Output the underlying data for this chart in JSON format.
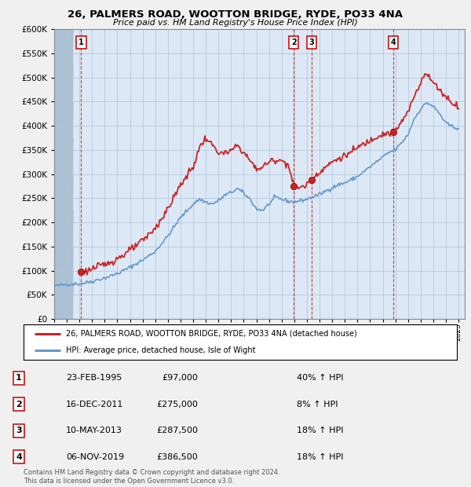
{
  "title": "26, PALMERS ROAD, WOOTTON BRIDGE, RYDE, PO33 4NA",
  "subtitle": "Price paid vs. HM Land Registry's House Price Index (HPI)",
  "ylim": [
    0,
    600000
  ],
  "yticks": [
    0,
    50000,
    100000,
    150000,
    200000,
    250000,
    300000,
    350000,
    400000,
    450000,
    500000,
    550000,
    600000
  ],
  "xlim_start": 1993.0,
  "xlim_end": 2025.5,
  "background_color": "#f0f0f0",
  "plot_background": "#dce8f5",
  "hpi_line_color": "#6699cc",
  "price_line_color": "#cc2222",
  "transaction_color": "#cc2222",
  "sales": [
    {
      "label": "1",
      "date_num": 1995.14,
      "price": 97000
    },
    {
      "label": "2",
      "date_num": 2011.96,
      "price": 275000
    },
    {
      "label": "3",
      "date_num": 2013.36,
      "price": 287500
    },
    {
      "label": "4",
      "date_num": 2019.85,
      "price": 386500
    }
  ],
  "legend_label1": "26, PALMERS ROAD, WOOTTON BRIDGE, RYDE, PO33 4NA (detached house)",
  "legend_label2": "HPI: Average price, detached house, Isle of Wight",
  "table_data": [
    {
      "num": "1",
      "date": "23-FEB-1995",
      "price": "£97,000",
      "hpi": "40% ↑ HPI"
    },
    {
      "num": "2",
      "date": "16-DEC-2011",
      "price": "£275,000",
      "hpi": "8% ↑ HPI"
    },
    {
      "num": "3",
      "date": "10-MAY-2013",
      "price": "£287,500",
      "hpi": "18% ↑ HPI"
    },
    {
      "num": "4",
      "date": "06-NOV-2019",
      "price": "£386,500",
      "hpi": "18% ↑ HPI"
    }
  ],
  "footer": "Contains HM Land Registry data © Crown copyright and database right 2024.\nThis data is licensed under the Open Government Licence v3.0.",
  "sale_vertical_lines": [
    1995.14,
    2011.96,
    2013.36,
    2019.85
  ],
  "hatch_end": 1994.5
}
